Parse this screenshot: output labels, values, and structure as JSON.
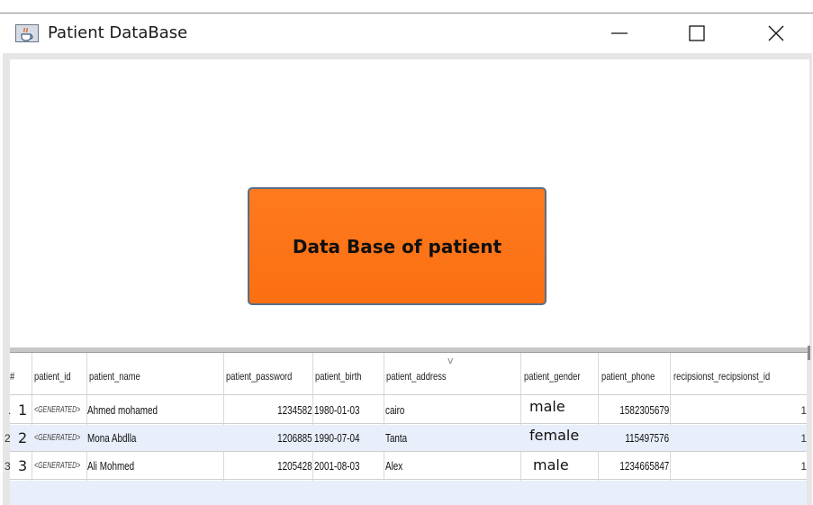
{
  "window": {
    "title": "Patient DataBase",
    "app_icon": "java-cup-icon"
  },
  "main_button": {
    "label": "Data Base of patient",
    "color": "#fa6f12"
  },
  "splitter": {
    "arrow": "v"
  },
  "table": {
    "columns": [
      "#",
      "patient_id",
      "patient_name",
      "patient_password",
      "patient_birth",
      "patient_address",
      "patient_gender",
      "patient_phone",
      "recipsionst_recipsionst_id"
    ],
    "rows": [
      {
        "marker": ".",
        "num": "1",
        "patient_id": "<GENERATED>",
        "patient_name": "Ahmed mohamed",
        "patient_password": "1234582",
        "patient_birth": "1980-01-03",
        "patient_address": "cairo",
        "patient_gender": "male",
        "patient_phone": "1582305679",
        "recipsionst_id": "1"
      },
      {
        "marker": "2",
        "num": "2",
        "patient_id": "<GENERATED>",
        "patient_name": "Mona Abdlla",
        "patient_password": "1206885",
        "patient_birth": "1990-07-04",
        "patient_address": "Tanta",
        "patient_gender": "female",
        "patient_phone": "115497576",
        "recipsionst_id": "1"
      },
      {
        "marker": "3",
        "num": "3",
        "patient_id": "<GENERATED>",
        "patient_name": "Ali Mohmed",
        "patient_password": "1205428",
        "patient_birth": "2001-08-03",
        "patient_address": "Alex",
        "patient_gender": "male",
        "patient_phone": "1234665847",
        "recipsionst_id": "1"
      }
    ]
  }
}
